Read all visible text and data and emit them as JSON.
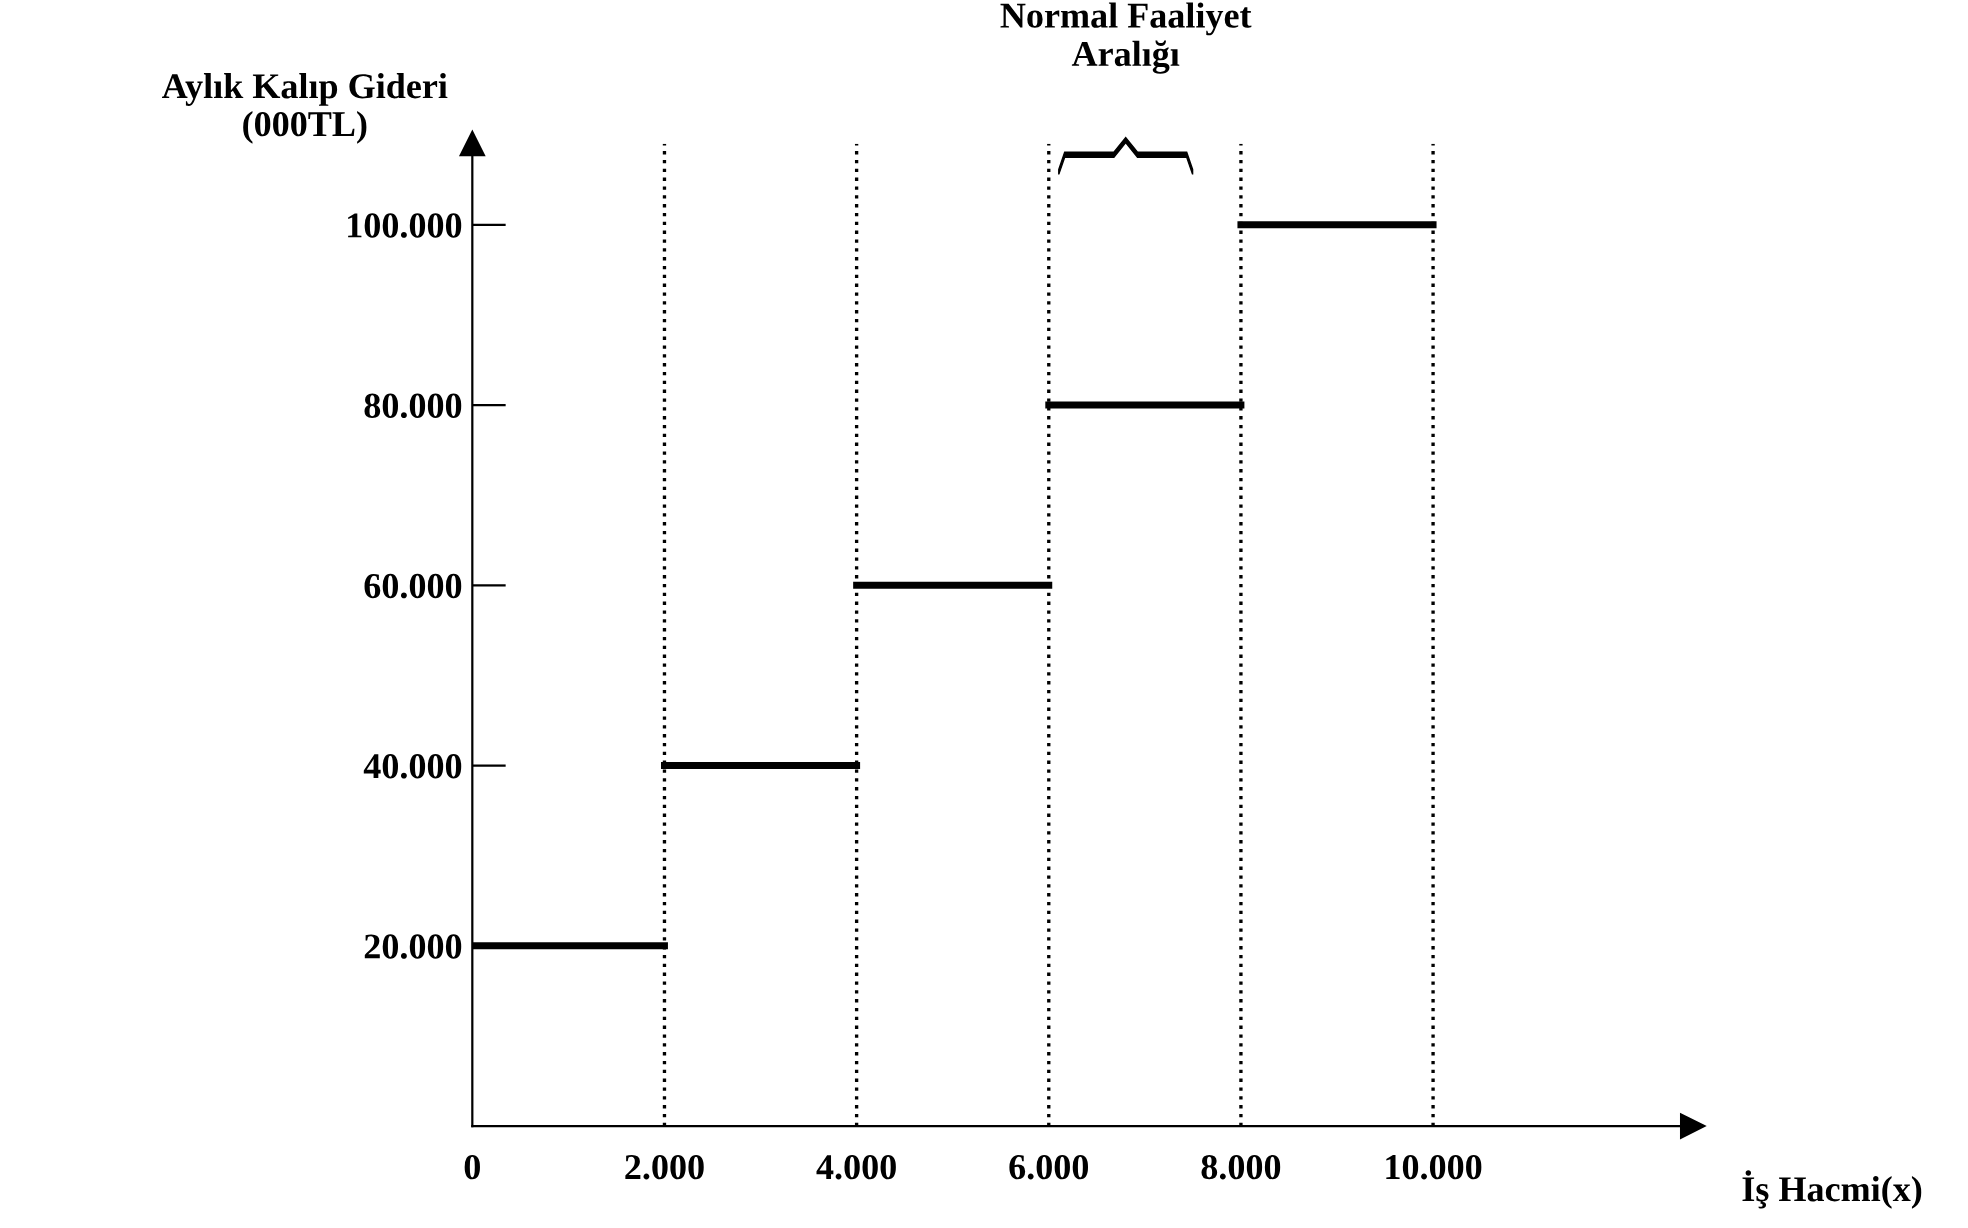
{
  "chart_data": {
    "type": "line",
    "series": [
      {
        "x": [
          0,
          2000
        ],
        "values": [
          20000,
          20000
        ],
        "color": "#000000"
      },
      {
        "x": [
          2000,
          4000
        ],
        "values": [
          40000,
          40000
        ],
        "color": "#000000"
      },
      {
        "x": [
          4000,
          6000
        ],
        "values": [
          60000,
          60000
        ],
        "color": "#000000"
      },
      {
        "x": [
          6000,
          8000
        ],
        "values": [
          80000,
          80000
        ],
        "color": "#000000"
      },
      {
        "x": [
          8000,
          10000
        ],
        "values": [
          100000,
          100000
        ],
        "color": "#000000"
      }
    ],
    "xlim": [
      0,
      12700
    ],
    "ylim": [
      0,
      109000
    ],
    "xticks": [
      0,
      {
        "value": 2000,
        "label": "2.000"
      },
      {
        "value": 4000,
        "label": "4.000"
      },
      {
        "value": 6000,
        "label": "6.000"
      },
      {
        "value": 8000,
        "label": "8.000"
      },
      {
        "value": 10000,
        "label": "10.000"
      }
    ],
    "yticks": [
      {
        "value": 20000,
        "label": "20.000"
      },
      {
        "value": 40000,
        "label": "40.000"
      },
      {
        "value": 60000,
        "label": "60.000"
      },
      {
        "value": 80000,
        "label": "80.000"
      },
      {
        "value": 100000,
        "label": "100.000"
      }
    ],
    "ylabel": "Aylık Kalıp Gideri\n(000TL)",
    "xlabel": "İş Hacmi(x)",
    "ref_lines": [
      {
        "axis": "x",
        "value": 2000,
        "line_style": "dotted"
      },
      {
        "axis": "x",
        "value": 4000,
        "line_style": "dotted"
      },
      {
        "axis": "x",
        "value": 6000,
        "line_style": "dotted"
      },
      {
        "axis": "x",
        "value": 8000,
        "line_style": "dotted"
      },
      {
        "axis": "x",
        "value": 10000,
        "line_style": "dotted"
      }
    ],
    "annotations": [
      "Normal Faaliyet\nAralığı"
    ],
    "grid": false,
    "legend": false
  }
}
